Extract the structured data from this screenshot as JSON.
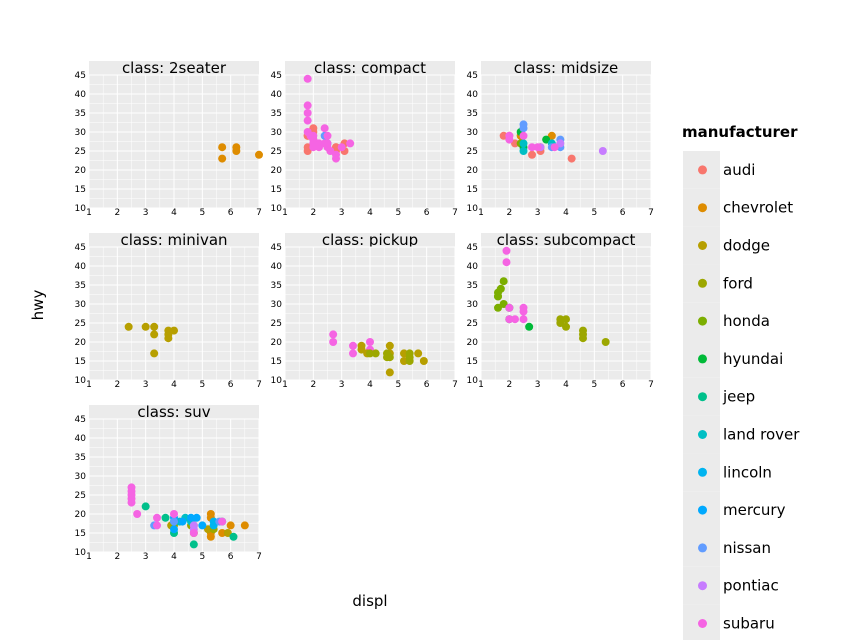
{
  "chart_data": {
    "type": "scatter",
    "facet_prefix": "class: ",
    "xlabel": "displ",
    "ylabel": "hwy",
    "xlim": [
      1,
      7
    ],
    "ylim": [
      10,
      45
    ],
    "x_ticks": [
      1,
      2,
      3,
      4,
      5,
      6,
      7
    ],
    "y_ticks": [
      10,
      15,
      20,
      25,
      30,
      35,
      40,
      45
    ],
    "legend": {
      "title": "manufacturer",
      "position": "right",
      "entries": [
        {
          "name": "audi",
          "color": "#f8766d"
        },
        {
          "name": "chevrolet",
          "color": "#de8c00"
        },
        {
          "name": "dodge",
          "color": "#b79f00"
        },
        {
          "name": "ford",
          "color": "#9ca700"
        },
        {
          "name": "honda",
          "color": "#7cae00"
        },
        {
          "name": "hyundai",
          "color": "#00ba38"
        },
        {
          "name": "jeep",
          "color": "#00c08b"
        },
        {
          "name": "land rover",
          "color": "#00bfc4"
        },
        {
          "name": "lincoln",
          "color": "#00b4f0"
        },
        {
          "name": "mercury",
          "color": "#00a9ff"
        },
        {
          "name": "nissan",
          "color": "#619cff"
        },
        {
          "name": "pontiac",
          "color": "#c77cff"
        },
        {
          "name": "subaru",
          "color": "#f564e3"
        }
      ]
    },
    "facets": [
      {
        "class": "2seater",
        "points": [
          {
            "x": 5.7,
            "y": 26,
            "m": "chevrolet"
          },
          {
            "x": 5.7,
            "y": 23,
            "m": "chevrolet"
          },
          {
            "x": 6.2,
            "y": 26,
            "m": "chevrolet"
          },
          {
            "x": 6.2,
            "y": 25,
            "m": "chevrolet"
          },
          {
            "x": 7.0,
            "y": 24,
            "m": "chevrolet"
          }
        ]
      },
      {
        "class": "compact",
        "points": [
          {
            "x": 1.8,
            "y": 29,
            "m": "audi"
          },
          {
            "x": 1.8,
            "y": 29,
            "m": "audi"
          },
          {
            "x": 2.0,
            "y": 31,
            "m": "audi"
          },
          {
            "x": 2.0,
            "y": 30,
            "m": "audi"
          },
          {
            "x": 2.8,
            "y": 26,
            "m": "audi"
          },
          {
            "x": 2.8,
            "y": 26,
            "m": "audi"
          },
          {
            "x": 3.1,
            "y": 27,
            "m": "audi"
          },
          {
            "x": 1.8,
            "y": 26,
            "m": "audi"
          },
          {
            "x": 1.8,
            "y": 25,
            "m": "audi"
          },
          {
            "x": 2.0,
            "y": 28,
            "m": "audi"
          },
          {
            "x": 2.8,
            "y": 25,
            "m": "audi"
          },
          {
            "x": 3.1,
            "y": 25,
            "m": "audi"
          },
          {
            "x": 2.5,
            "y": 27,
            "m": "nissan"
          },
          {
            "x": 2.4,
            "y": 29,
            "m": "nissan"
          },
          {
            "x": 2.2,
            "y": 26,
            "m": "subaru"
          },
          {
            "x": 2.5,
            "y": 26,
            "m": "subaru"
          },
          {
            "x": 2.5,
            "y": 27,
            "m": "subaru"
          },
          {
            "x": 1.8,
            "y": 30,
            "m": "subaru"
          },
          {
            "x": 1.8,
            "y": 44,
            "m": "subaru"
          },
          {
            "x": 1.8,
            "y": 37,
            "m": "subaru"
          },
          {
            "x": 1.8,
            "y": 35,
            "m": "subaru"
          },
          {
            "x": 1.8,
            "y": 33,
            "m": "subaru"
          },
          {
            "x": 1.9,
            "y": 29,
            "m": "subaru"
          },
          {
            "x": 2.0,
            "y": 29,
            "m": "subaru"
          },
          {
            "x": 2.0,
            "y": 26,
            "m": "subaru"
          },
          {
            "x": 2.2,
            "y": 27,
            "m": "subaru"
          },
          {
            "x": 2.4,
            "y": 31,
            "m": "subaru"
          },
          {
            "x": 2.4,
            "y": 27,
            "m": "subaru"
          },
          {
            "x": 2.5,
            "y": 29,
            "m": "subaru"
          },
          {
            "x": 2.6,
            "y": 25,
            "m": "subaru"
          },
          {
            "x": 2.0,
            "y": 28,
            "m": "subaru"
          },
          {
            "x": 2.8,
            "y": 24,
            "m": "subaru"
          },
          {
            "x": 2.8,
            "y": 23,
            "m": "subaru"
          },
          {
            "x": 3.0,
            "y": 26,
            "m": "subaru"
          },
          {
            "x": 3.3,
            "y": 27,
            "m": "subaru"
          },
          {
            "x": 2.0,
            "y": 27,
            "m": "subaru"
          }
        ]
      },
      {
        "class": "midsize",
        "points": [
          {
            "x": 2.8,
            "y": 24,
            "m": "audi"
          },
          {
            "x": 3.1,
            "y": 25,
            "m": "audi"
          },
          {
            "x": 4.2,
            "y": 23,
            "m": "audi"
          },
          {
            "x": 2.0,
            "y": 29,
            "m": "audi"
          },
          {
            "x": 1.8,
            "y": 29,
            "m": "audi"
          },
          {
            "x": 2.2,
            "y": 27,
            "m": "audi"
          },
          {
            "x": 2.4,
            "y": 29,
            "m": "chevrolet"
          },
          {
            "x": 3.5,
            "y": 29,
            "m": "chevrolet"
          },
          {
            "x": 3.1,
            "y": 26,
            "m": "chevrolet"
          },
          {
            "x": 2.4,
            "y": 27,
            "m": "honda"
          },
          {
            "x": 2.5,
            "y": 26,
            "m": "hyundai"
          },
          {
            "x": 2.4,
            "y": 30,
            "m": "hyundai"
          },
          {
            "x": 3.3,
            "y": 28,
            "m": "hyundai"
          },
          {
            "x": 2.5,
            "y": 27,
            "m": "land rover"
          },
          {
            "x": 2.5,
            "y": 25,
            "m": "land rover"
          },
          {
            "x": 3.5,
            "y": 27,
            "m": "land rover"
          },
          {
            "x": 2.5,
            "y": 31,
            "m": "nissan"
          },
          {
            "x": 2.5,
            "y": 32,
            "m": "nissan"
          },
          {
            "x": 3.5,
            "y": 26,
            "m": "nissan"
          },
          {
            "x": 3.8,
            "y": 28,
            "m": "nissan"
          },
          {
            "x": 3.8,
            "y": 26,
            "m": "nissan"
          },
          {
            "x": 3.1,
            "y": 26,
            "m": "pontiac"
          },
          {
            "x": 3.8,
            "y": 27,
            "m": "pontiac"
          },
          {
            "x": 5.3,
            "y": 25,
            "m": "pontiac"
          },
          {
            "x": 2.0,
            "y": 28,
            "m": "subaru"
          },
          {
            "x": 2.0,
            "y": 29,
            "m": "subaru"
          },
          {
            "x": 2.8,
            "y": 26,
            "m": "subaru"
          },
          {
            "x": 3.0,
            "y": 26,
            "m": "subaru"
          },
          {
            "x": 3.6,
            "y": 26,
            "m": "subaru"
          },
          {
            "x": 2.5,
            "y": 29,
            "m": "subaru"
          }
        ]
      },
      {
        "class": "minivan",
        "points": [
          {
            "x": 2.4,
            "y": 24,
            "m": "dodge"
          },
          {
            "x": 3.0,
            "y": 24,
            "m": "dodge"
          },
          {
            "x": 3.3,
            "y": 22,
            "m": "dodge"
          },
          {
            "x": 3.3,
            "y": 24,
            "m": "dodge"
          },
          {
            "x": 3.3,
            "y": 17,
            "m": "dodge"
          },
          {
            "x": 3.8,
            "y": 22,
            "m": "dodge"
          },
          {
            "x": 3.8,
            "y": 21,
            "m": "dodge"
          },
          {
            "x": 3.8,
            "y": 23,
            "m": "dodge"
          },
          {
            "x": 4.0,
            "y": 23,
            "m": "dodge"
          }
        ]
      },
      {
        "class": "pickup",
        "points": [
          {
            "x": 2.7,
            "y": 20,
            "m": "subaru"
          },
          {
            "x": 2.7,
            "y": 22,
            "m": "subaru"
          },
          {
            "x": 3.4,
            "y": 17,
            "m": "subaru"
          },
          {
            "x": 3.4,
            "y": 19,
            "m": "subaru"
          },
          {
            "x": 4.0,
            "y": 18,
            "m": "subaru"
          },
          {
            "x": 4.0,
            "y": 20,
            "m": "subaru"
          },
          {
            "x": 3.7,
            "y": 19,
            "m": "dodge"
          },
          {
            "x": 3.7,
            "y": 18,
            "m": "dodge"
          },
          {
            "x": 3.9,
            "y": 17,
            "m": "dodge"
          },
          {
            "x": 4.7,
            "y": 19,
            "m": "dodge"
          },
          {
            "x": 4.7,
            "y": 12,
            "m": "dodge"
          },
          {
            "x": 4.7,
            "y": 17,
            "m": "dodge"
          },
          {
            "x": 5.2,
            "y": 17,
            "m": "dodge"
          },
          {
            "x": 5.2,
            "y": 15,
            "m": "dodge"
          },
          {
            "x": 5.7,
            "y": 17,
            "m": "dodge"
          },
          {
            "x": 5.9,
            "y": 15,
            "m": "dodge"
          },
          {
            "x": 4.2,
            "y": 17,
            "m": "ford"
          },
          {
            "x": 4.6,
            "y": 17,
            "m": "ford"
          },
          {
            "x": 4.6,
            "y": 16,
            "m": "ford"
          },
          {
            "x": 5.4,
            "y": 17,
            "m": "ford"
          },
          {
            "x": 5.4,
            "y": 16,
            "m": "ford"
          },
          {
            "x": 5.4,
            "y": 15,
            "m": "ford"
          },
          {
            "x": 4.7,
            "y": 16,
            "m": "ford"
          },
          {
            "x": 4.0,
            "y": 17,
            "m": "ford"
          }
        ]
      },
      {
        "class": "subcompact",
        "points": [
          {
            "x": 3.8,
            "y": 26,
            "m": "ford"
          },
          {
            "x": 3.8,
            "y": 25,
            "m": "ford"
          },
          {
            "x": 4.0,
            "y": 26,
            "m": "ford"
          },
          {
            "x": 4.0,
            "y": 24,
            "m": "ford"
          },
          {
            "x": 4.6,
            "y": 21,
            "m": "ford"
          },
          {
            "x": 4.6,
            "y": 22,
            "m": "ford"
          },
          {
            "x": 4.6,
            "y": 23,
            "m": "ford"
          },
          {
            "x": 5.4,
            "y": 20,
            "m": "ford"
          },
          {
            "x": 1.6,
            "y": 33,
            "m": "honda"
          },
          {
            "x": 1.6,
            "y": 32,
            "m": "honda"
          },
          {
            "x": 1.6,
            "y": 29,
            "m": "honda"
          },
          {
            "x": 1.7,
            "y": 34,
            "m": "honda"
          },
          {
            "x": 1.8,
            "y": 36,
            "m": "honda"
          },
          {
            "x": 1.8,
            "y": 30,
            "m": "honda"
          },
          {
            "x": 1.6,
            "y": 32,
            "m": "honda"
          },
          {
            "x": 2.0,
            "y": 29,
            "m": "hyundai"
          },
          {
            "x": 2.0,
            "y": 26,
            "m": "hyundai"
          },
          {
            "x": 2.7,
            "y": 24,
            "m": "hyundai"
          },
          {
            "x": 1.9,
            "y": 44,
            "m": "subaru"
          },
          {
            "x": 1.9,
            "y": 41,
            "m": "subaru"
          },
          {
            "x": 2.0,
            "y": 29,
            "m": "subaru"
          },
          {
            "x": 2.0,
            "y": 26,
            "m": "subaru"
          },
          {
            "x": 2.5,
            "y": 29,
            "m": "subaru"
          },
          {
            "x": 2.5,
            "y": 28,
            "m": "subaru"
          },
          {
            "x": 2.5,
            "y": 26,
            "m": "subaru"
          },
          {
            "x": 2.2,
            "y": 26,
            "m": "subaru"
          }
        ]
      },
      {
        "class": "suv",
        "points": [
          {
            "x": 5.3,
            "y": 20,
            "m": "chevrolet"
          },
          {
            "x": 5.3,
            "y": 15,
            "m": "chevrolet"
          },
          {
            "x": 5.3,
            "y": 14,
            "m": "chevrolet"
          },
          {
            "x": 5.7,
            "y": 15,
            "m": "chevrolet"
          },
          {
            "x": 6.0,
            "y": 17,
            "m": "chevrolet"
          },
          {
            "x": 6.5,
            "y": 17,
            "m": "chevrolet"
          },
          {
            "x": 5.3,
            "y": 19,
            "m": "chevrolet"
          },
          {
            "x": 3.9,
            "y": 17,
            "m": "dodge"
          },
          {
            "x": 4.7,
            "y": 15,
            "m": "dodge"
          },
          {
            "x": 5.2,
            "y": 16,
            "m": "dodge"
          },
          {
            "x": 5.9,
            "y": 15,
            "m": "dodge"
          },
          {
            "x": 4.7,
            "y": 17,
            "m": "dodge"
          },
          {
            "x": 4.0,
            "y": 17,
            "m": "ford"
          },
          {
            "x": 4.6,
            "y": 17,
            "m": "ford"
          },
          {
            "x": 5.4,
            "y": 16,
            "m": "ford"
          },
          {
            "x": 3.0,
            "y": 22,
            "m": "jeep"
          },
          {
            "x": 3.7,
            "y": 19,
            "m": "jeep"
          },
          {
            "x": 4.0,
            "y": 15,
            "m": "jeep"
          },
          {
            "x": 4.7,
            "y": 12,
            "m": "jeep"
          },
          {
            "x": 5.7,
            "y": 18,
            "m": "jeep"
          },
          {
            "x": 6.1,
            "y": 14,
            "m": "jeep"
          },
          {
            "x": 4.0,
            "y": 18,
            "m": "land rover"
          },
          {
            "x": 4.2,
            "y": 18,
            "m": "land rover"
          },
          {
            "x": 4.4,
            "y": 19,
            "m": "land rover"
          },
          {
            "x": 4.6,
            "y": 18,
            "m": "land rover"
          },
          {
            "x": 5.4,
            "y": 17,
            "m": "lincoln"
          },
          {
            "x": 5.4,
            "y": 18,
            "m": "lincoln"
          },
          {
            "x": 4.0,
            "y": 19,
            "m": "mercury"
          },
          {
            "x": 4.6,
            "y": 19,
            "m": "mercury"
          },
          {
            "x": 5.0,
            "y": 17,
            "m": "mercury"
          },
          {
            "x": 4.0,
            "y": 16,
            "m": "mercury"
          },
          {
            "x": 4.3,
            "y": 18,
            "m": "mercury"
          },
          {
            "x": 4.8,
            "y": 19,
            "m": "mercury"
          },
          {
            "x": 3.3,
            "y": 17,
            "m": "nissan"
          },
          {
            "x": 4.0,
            "y": 18,
            "m": "nissan"
          },
          {
            "x": 5.6,
            "y": 18,
            "m": "nissan"
          },
          {
            "x": 4.7,
            "y": 16,
            "m": "pontiac"
          },
          {
            "x": 4.7,
            "y": 17,
            "m": "pontiac"
          },
          {
            "x": 2.5,
            "y": 27,
            "m": "subaru"
          },
          {
            "x": 2.5,
            "y": 26,
            "m": "subaru"
          },
          {
            "x": 2.5,
            "y": 25,
            "m": "subaru"
          },
          {
            "x": 2.5,
            "y": 24,
            "m": "subaru"
          },
          {
            "x": 2.5,
            "y": 23,
            "m": "subaru"
          },
          {
            "x": 2.7,
            "y": 20,
            "m": "subaru"
          },
          {
            "x": 3.4,
            "y": 19,
            "m": "subaru"
          },
          {
            "x": 4.0,
            "y": 20,
            "m": "subaru"
          },
          {
            "x": 4.7,
            "y": 15,
            "m": "subaru"
          },
          {
            "x": 5.7,
            "y": 18,
            "m": "subaru"
          },
          {
            "x": 3.4,
            "y": 17,
            "m": "subaru"
          }
        ]
      }
    ]
  }
}
